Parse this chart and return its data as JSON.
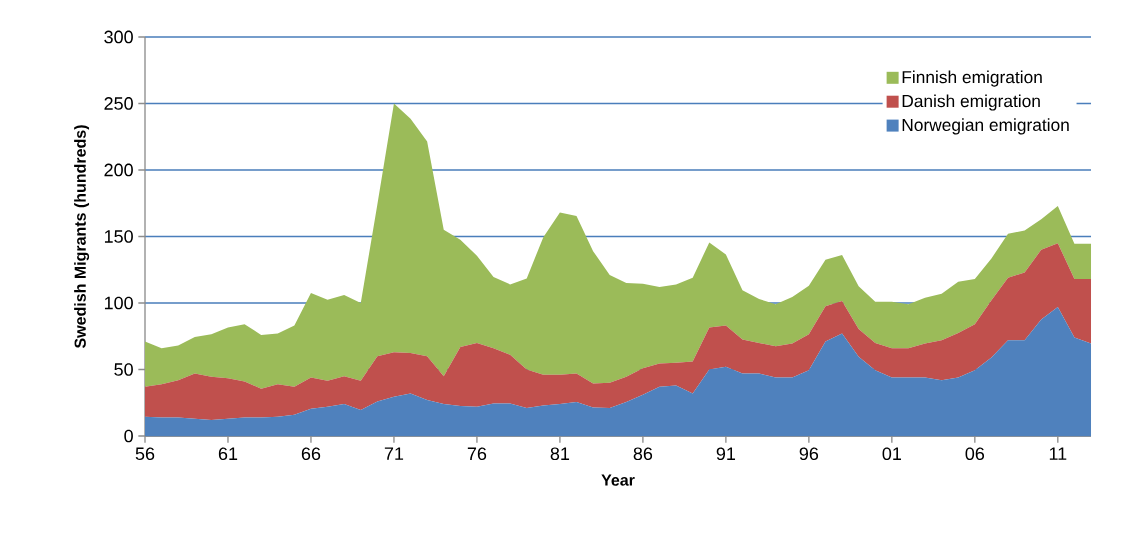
{
  "chart_data": {
    "type": "area",
    "xlabel": "Year",
    "ylabel": "Swedish Migrants (hundreds)",
    "categories": [
      "56",
      null,
      null,
      null,
      null,
      "61",
      null,
      null,
      null,
      null,
      "66",
      null,
      null,
      null,
      null,
      "71",
      null,
      null,
      null,
      null,
      "76",
      null,
      null,
      null,
      null,
      "81",
      null,
      null,
      null,
      null,
      "86",
      null,
      null,
      null,
      null,
      "91",
      null,
      null,
      null,
      null,
      "96",
      null,
      null,
      null,
      null,
      "01",
      null,
      null,
      null,
      null,
      "06",
      null,
      null,
      null,
      null,
      "11",
      null,
      null
    ],
    "series": [
      {
        "name": "Norwegian emigration",
        "color": "#4f81bd",
        "values": [
          14.5,
          14,
          14,
          13,
          12,
          13,
          14,
          14,
          14.5,
          16,
          20.5,
          22,
          24,
          19.5,
          26,
          29.5,
          32,
          27,
          24,
          22.5,
          22,
          24.5,
          24.5,
          21,
          23,
          24,
          25.5,
          21.5,
          21,
          25.5,
          31,
          37,
          38,
          32,
          50,
          52,
          47,
          47,
          44,
          44,
          49.5,
          71,
          77,
          59.5,
          49.5,
          44,
          44,
          44,
          42,
          44,
          49.5,
          59,
          72,
          72,
          87.5,
          97,
          74,
          69.5
        ]
      },
      {
        "name": "Danish emigration",
        "color": "#c0504d",
        "values": [
          22.5,
          25,
          28,
          34,
          32.5,
          30.5,
          27,
          21.5,
          24.5,
          21,
          23.5,
          19.5,
          21,
          22,
          34,
          33.5,
          30.5,
          33,
          21,
          44.5,
          48,
          41.5,
          36.5,
          29,
          23,
          22,
          21.5,
          18,
          19,
          19,
          20,
          17.5,
          17,
          24,
          31.5,
          31,
          25.5,
          23,
          23.5,
          25.5,
          27,
          26.5,
          24.5,
          21,
          20.5,
          22,
          22,
          25.5,
          30,
          33.5,
          34.5,
          43,
          47,
          51,
          52.5,
          48,
          44,
          48.5
        ]
      },
      {
        "name": "Finnish emigration",
        "color": "#9bbb59",
        "values": [
          34,
          27,
          26,
          27.5,
          32,
          38,
          43,
          40.5,
          38,
          46,
          63.5,
          61,
          61,
          58.5,
          114,
          187,
          176,
          161.5,
          110,
          80.5,
          65.5,
          53.5,
          53,
          68.5,
          103.5,
          122,
          118.5,
          99.5,
          81,
          70.5,
          63.5,
          57.5,
          59,
          63,
          64,
          53.5,
          37,
          33,
          31.5,
          35,
          36.5,
          35,
          34.5,
          32,
          31,
          35,
          33,
          34.5,
          35,
          38.5,
          34,
          31.5,
          33,
          31.5,
          23,
          28,
          26.5,
          26.5
        ]
      }
    ],
    "stacked": true,
    "ylim": [
      0,
      300
    ],
    "yticks": [
      0,
      50,
      100,
      150,
      200,
      250,
      300
    ],
    "grid": "y",
    "legend": "top right"
  }
}
